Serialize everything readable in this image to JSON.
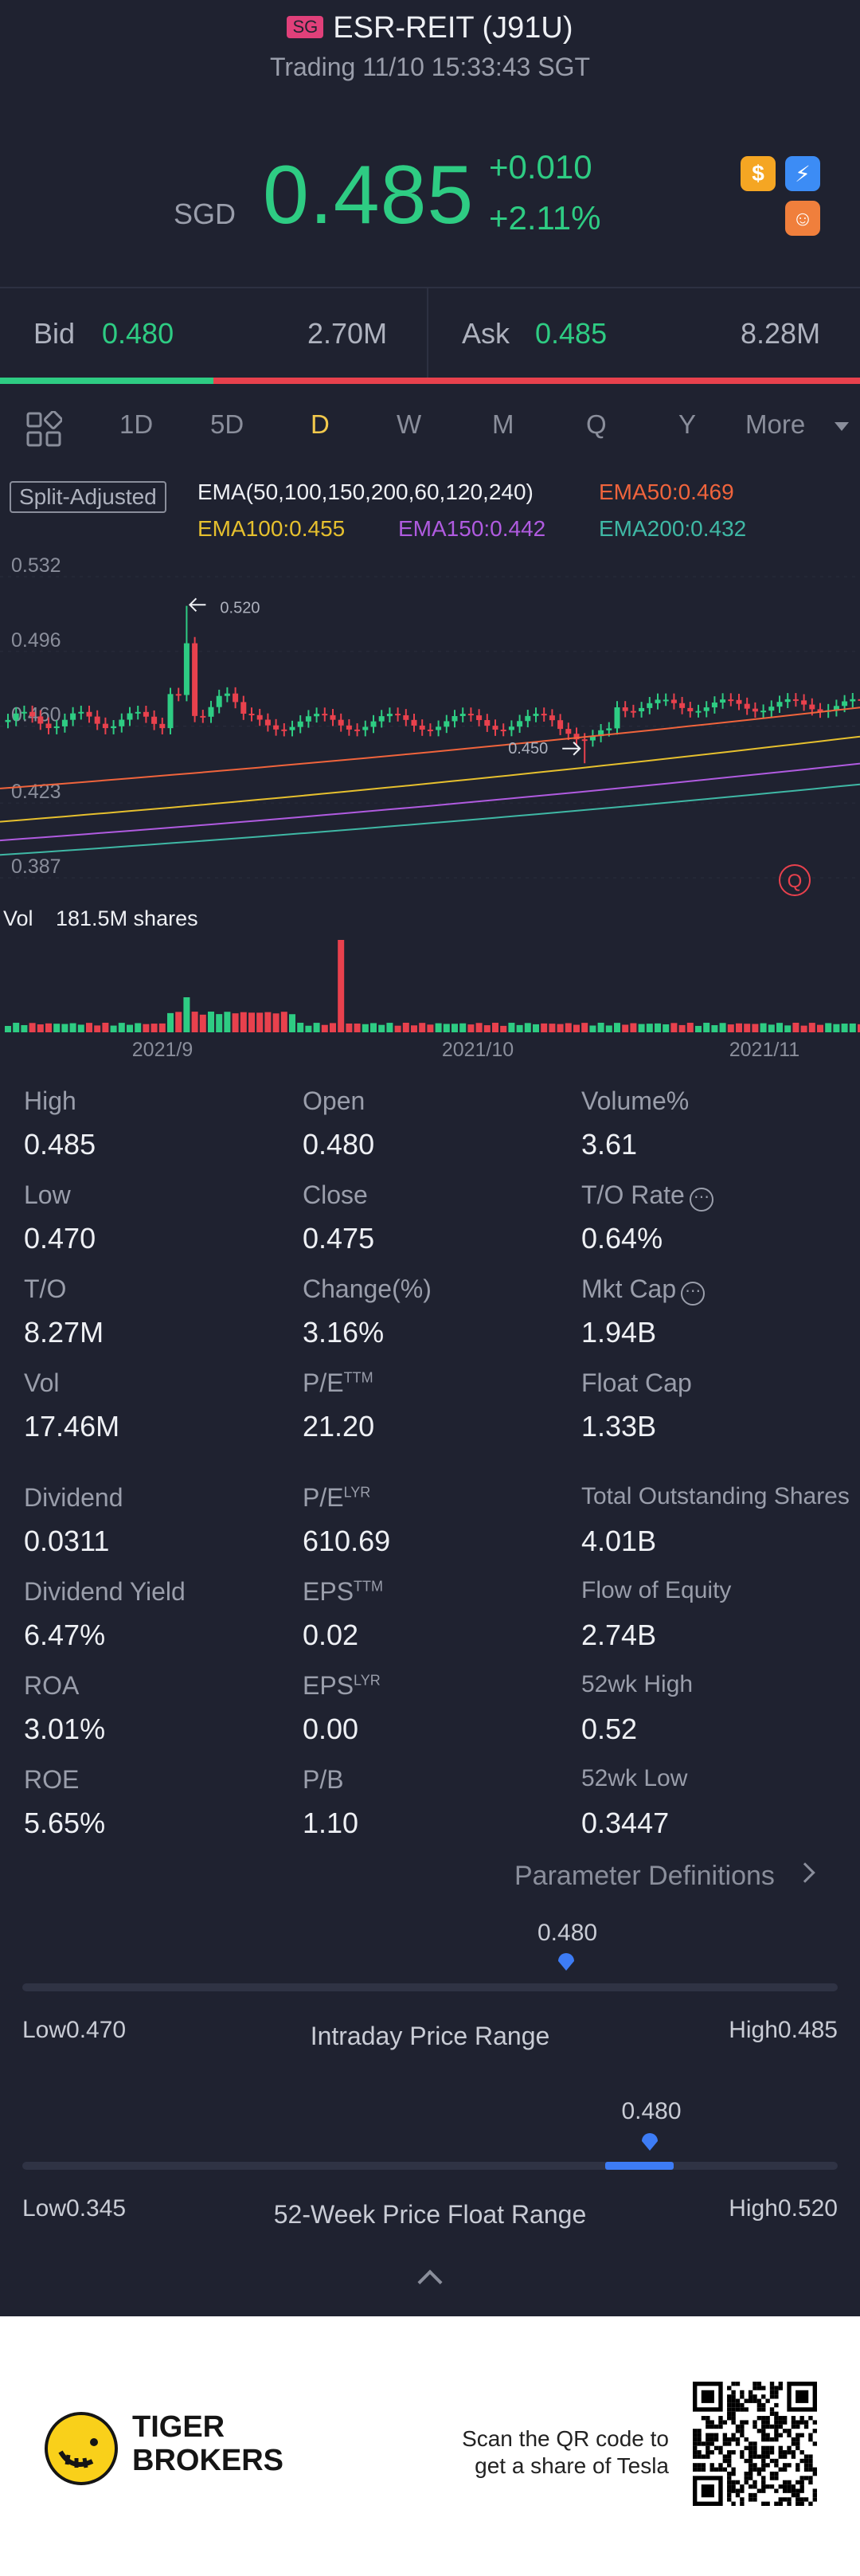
{
  "header": {
    "market_badge": "SG",
    "title": "ESR-REIT (J91U)",
    "status": "Trading 11/10 15:33:43 SGT",
    "currency": "SGD",
    "price": "0.485",
    "change": "+0.010",
    "change_pct": "+2.11%",
    "icons": [
      "dollar-icon",
      "lightning-icon",
      "smile-face-icon"
    ]
  },
  "quote": {
    "bid_label": "Bid",
    "bid": "0.480",
    "bid_size": "2.70M",
    "ask_label": "Ask",
    "ask": "0.485",
    "ask_size": "8.28M",
    "bid_ratio": 0.25
  },
  "tabs": {
    "items": [
      "1D",
      "5D",
      "D",
      "W",
      "M",
      "Q",
      "Y",
      "More"
    ],
    "active": "D"
  },
  "legend": {
    "adjust": "Split-Adjusted",
    "ema_params": "EMA(50,100,150,200,60,120,240)",
    "ema50": "EMA50:0.469",
    "ema100": "EMA100:0.455",
    "ema150": "EMA150:0.442",
    "ema200": "EMA200:0.432"
  },
  "chart_data": {
    "type": "candlestick",
    "y_ticks": [
      "0.532",
      "0.496",
      "0.460",
      "0.423",
      "0.387"
    ],
    "ylim": [
      0.387,
      0.532
    ],
    "x_ticks": [
      "2021/9",
      "2021/10",
      "2021/11"
    ],
    "annotations": {
      "high_marker": "0.520",
      "low_marker": "0.450"
    },
    "volume_label": "Vol",
    "volume_value": "181.5M shares",
    "colors": {
      "up": "#2ecc83",
      "down": "#e8414d",
      "ema50": "#f0643c",
      "ema100": "#e6c02e",
      "ema150": "#b05be0",
      "ema200": "#3fb8a5"
    }
  },
  "stats": [
    {
      "label": "High",
      "value": "0.485"
    },
    {
      "label": "Open",
      "value": "0.480"
    },
    {
      "label": "Volume%",
      "value": "3.61"
    },
    {
      "label": "Low",
      "value": "0.470"
    },
    {
      "label": "Close",
      "value": "0.475"
    },
    {
      "label": "T/O Rate",
      "value": "0.64%"
    },
    {
      "label": "T/O",
      "value": "8.27M"
    },
    {
      "label": "Change(%)",
      "value": "3.16%"
    },
    {
      "label": "Mkt Cap",
      "value": "1.94B"
    },
    {
      "label": "Vol",
      "value": "17.46M"
    },
    {
      "label": "P/E",
      "sup": "TTM",
      "value": "21.20"
    },
    {
      "label": "Float Cap",
      "value": "1.33B"
    },
    {
      "label": "Dividend",
      "value": "0.0311"
    },
    {
      "label": "P/E",
      "sup": "LYR",
      "value": "610.69"
    },
    {
      "label": "Total Outstanding Shares",
      "value": "4.01B"
    },
    {
      "label": "Dividend Yield",
      "value": "6.47%"
    },
    {
      "label": "EPS",
      "sup": "TTM",
      "value": "0.02"
    },
    {
      "label": "Flow of Equity",
      "value": "2.74B"
    },
    {
      "label": "ROA",
      "value": "3.01%"
    },
    {
      "label": "EPS",
      "sup": "LYR",
      "value": "0.00"
    },
    {
      "label": "52wk High",
      "value": "0.52"
    },
    {
      "label": "ROE",
      "value": "5.65%"
    },
    {
      "label": "P/B",
      "value": "1.10"
    },
    {
      "label": "52wk Low",
      "value": "0.3447"
    }
  ],
  "param_link": "Parameter Definitions",
  "intraday_range": {
    "title": "Intraday Price Range",
    "current": "0.480",
    "low_label": "Low0.470",
    "high_label": "High0.485",
    "position": 0.667
  },
  "week52_range": {
    "title": "52-Week Price Float Range",
    "current": "0.480",
    "low_label": "Low0.345",
    "high_label": "High0.520",
    "position": 0.77
  },
  "footer": {
    "brand_line1": "TIGER",
    "brand_line2": "BROKERS",
    "scan_line1": "Scan the QR code to",
    "scan_line2": "get a share of Tesla"
  }
}
